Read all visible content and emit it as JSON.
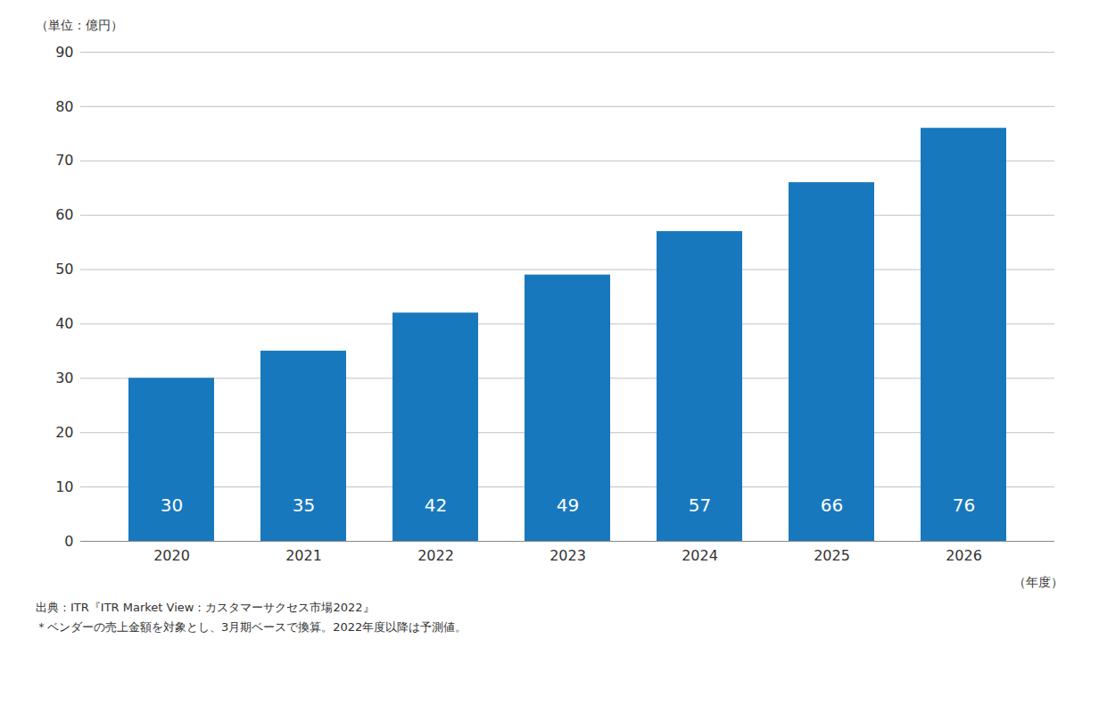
{
  "chart_data": {
    "type": "bar",
    "categories": [
      "2020",
      "2021",
      "2022",
      "2023",
      "2024",
      "2025",
      "2026"
    ],
    "values": [
      30,
      35,
      42,
      49,
      57,
      66,
      76
    ],
    "color": "#1878be",
    "xlabel": "（年度）",
    "ylabel": "（単位：億円）",
    "ylim": [
      0,
      90
    ],
    "yticks": [
      0,
      10,
      20,
      30,
      40,
      50,
      60,
      70,
      80,
      90
    ],
    "grid": true,
    "data_labels": true,
    "annotations": [
      "出典：ITR『ITR Market View：カスタマーサクセス市場2022』",
      "＊ベンダーの売上金額を対象とし、3月期ベースで換算。2022年度以降は予測値。"
    ]
  }
}
